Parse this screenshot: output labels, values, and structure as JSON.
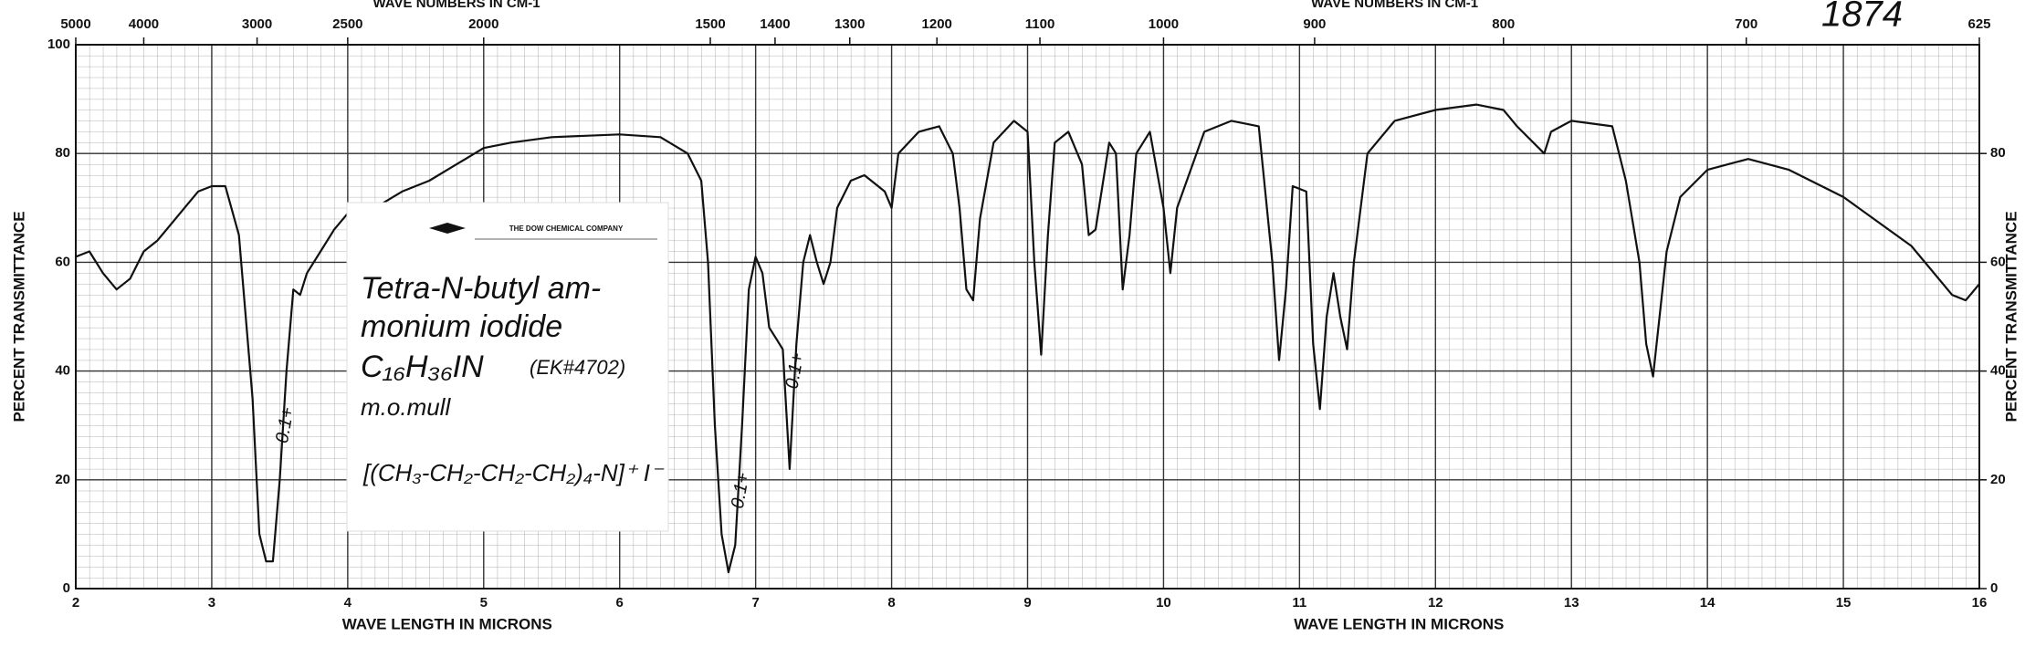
{
  "chart_data": {
    "type": "line",
    "color": "#111111",
    "xlim": [
      2,
      16
    ],
    "xticks": [
      2,
      3,
      4,
      5,
      6,
      7,
      8,
      9,
      10,
      11,
      12,
      13,
      14,
      15,
      16
    ],
    "ylim": [
      0,
      100
    ],
    "yticks": [
      0,
      20,
      40,
      60,
      80,
      100
    ],
    "y2lim": [
      0,
      100
    ],
    "y2ticks": [
      0,
      20,
      40,
      60,
      80
    ],
    "x2lim": [
      5000,
      625
    ],
    "x2scale": "reciprocal",
    "x2ticks": [
      5000,
      4000,
      3000,
      2500,
      2000,
      1500,
      1400,
      1300,
      1200,
      1100,
      1000,
      900,
      800,
      700,
      625
    ],
    "grid": true,
    "xlabels": [
      "WAVE LENGTH IN MICRONS",
      "WAVE LENGTH IN MICRONS"
    ],
    "x2labels": [
      "WAVE NUMBERS IN CM-1",
      "WAVE NUMBERS IN CM-1"
    ],
    "ylabel": "PERCENT TRANSMITTANCE",
    "y2label": "PERCENT TRANSMITTANCE",
    "spectrum_number": "1874",
    "card": {
      "company": "THE DOW CHEMICAL COMPANY",
      "lines": [
        "Tetra-N-butyl am-",
        "monium iodide",
        "C₁₆H₃₆IN",
        "m.o.mull",
        "[(CH₃-CH₂-CH₂-CH₂)₄-N]⁺ I⁻"
      ],
      "code": "(EK#4702)"
    },
    "annotations": [
      "0.1+",
      "0.1+",
      "0.1+"
    ],
    "x": [
      2.0,
      2.1,
      2.2,
      2.3,
      2.4,
      2.5,
      2.6,
      2.7,
      2.8,
      2.9,
      3.0,
      3.1,
      3.2,
      3.3,
      3.35,
      3.4,
      3.45,
      3.5,
      3.55,
      3.6,
      3.65,
      3.7,
      3.8,
      3.9,
      4.0,
      4.2,
      4.4,
      4.6,
      4.8,
      5.0,
      5.2,
      5.5,
      6.0,
      6.3,
      6.5,
      6.6,
      6.65,
      6.7,
      6.75,
      6.8,
      6.85,
      6.9,
      6.95,
      7.0,
      7.05,
      7.1,
      7.15,
      7.2,
      7.25,
      7.3,
      7.35,
      7.4,
      7.45,
      7.5,
      7.55,
      7.6,
      7.7,
      7.8,
      7.95,
      8.0,
      8.05,
      8.2,
      8.35,
      8.45,
      8.5,
      8.55,
      8.6,
      8.65,
      8.75,
      8.9,
      9.0,
      9.05,
      9.1,
      9.15,
      9.2,
      9.3,
      9.4,
      9.45,
      9.5,
      9.6,
      9.65,
      9.7,
      9.75,
      9.8,
      9.9,
      10.0,
      10.05,
      10.1,
      10.3,
      10.5,
      10.7,
      10.8,
      10.85,
      10.9,
      10.95,
      11.05,
      11.1,
      11.15,
      11.2,
      11.25,
      11.3,
      11.35,
      11.4,
      11.5,
      11.7,
      12.0,
      12.3,
      12.5,
      12.6,
      12.8,
      12.85,
      13.0,
      13.3,
      13.4,
      13.5,
      13.55,
      13.6,
      13.7,
      13.8,
      14.0,
      14.3,
      14.6,
      15.0,
      15.5,
      15.8,
      15.9,
      16.0
    ],
    "values": [
      61,
      62,
      58,
      55,
      57,
      62,
      64,
      67,
      70,
      73,
      74,
      74,
      65,
      35,
      10,
      5,
      5,
      20,
      40,
      55,
      54,
      58,
      62,
      66,
      69,
      70,
      73,
      75,
      78,
      81,
      82,
      83,
      83.5,
      83,
      80,
      75,
      60,
      30,
      10,
      3,
      8,
      30,
      55,
      61,
      58,
      48,
      46,
      44,
      22,
      45,
      60,
      65,
      60,
      56,
      60,
      70,
      75,
      76,
      73,
      70,
      80,
      84,
      85,
      80,
      70,
      55,
      53,
      68,
      82,
      86,
      84,
      60,
      43,
      65,
      82,
      84,
      78,
      65,
      66,
      82,
      80,
      55,
      65,
      80,
      84,
      70,
      58,
      70,
      84,
      86,
      85,
      60,
      42,
      55,
      74,
      73,
      45,
      33,
      50,
      58,
      50,
      44,
      60,
      80,
      86,
      88,
      89,
      88,
      85,
      80,
      84,
      86,
      85,
      75,
      60,
      45,
      39,
      62,
      72,
      77,
      79,
      77,
      72,
      63,
      54,
      53,
      56
    ]
  }
}
